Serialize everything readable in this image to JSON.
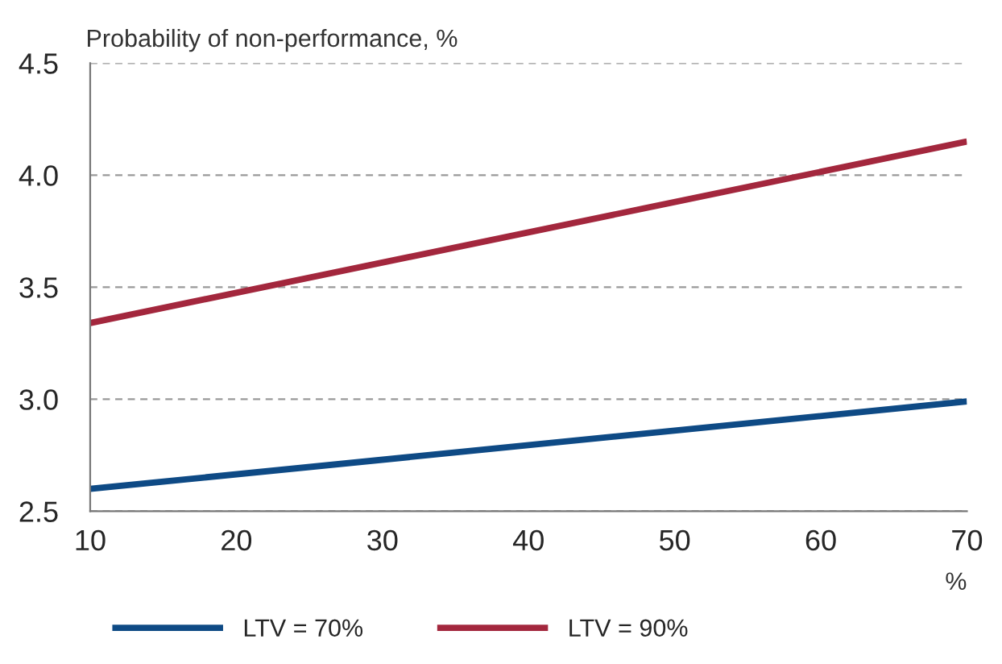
{
  "chart_data": {
    "type": "line",
    "ylabel": "Probability of non-performance, %",
    "xlabel": "%",
    "x": [
      10,
      70
    ],
    "series": [
      {
        "name": "LTV = 70%",
        "color": "#0e4a85",
        "values": [
          2.6,
          2.99
        ]
      },
      {
        "name": "LTV = 90%",
        "color": "#a3273d",
        "values": [
          3.34,
          4.15
        ]
      }
    ],
    "xlim": [
      10,
      70
    ],
    "xticks": [
      10,
      20,
      30,
      40,
      50,
      60,
      70
    ],
    "ylim": [
      2.5,
      4.5
    ],
    "yticks": [
      {
        "value": 2.5,
        "label": "2.5"
      },
      {
        "value": 3.0,
        "label": "3.0"
      },
      {
        "value": 3.5,
        "label": "3.5"
      },
      {
        "value": 4.0,
        "label": "4.0"
      },
      {
        "value": 4.5,
        "label": "4.5"
      }
    ],
    "grid": "y",
    "legend": "bottom",
    "line_style": "solid",
    "marker": "none"
  }
}
